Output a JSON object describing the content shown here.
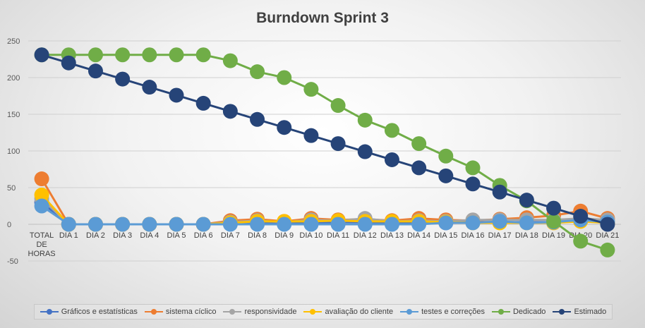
{
  "chart_data": {
    "type": "line",
    "title": "Burndown Sprint 3",
    "xlabel": "",
    "ylabel": "",
    "ylim": [
      -50,
      250
    ],
    "yticks": [
      -50,
      0,
      50,
      100,
      150,
      200,
      250
    ],
    "grid": true,
    "legend_position": "bottom",
    "categories": [
      "TOTAL DE HORAS",
      "DIA 1",
      "DIA 2",
      "DIA 3",
      "DIA 4",
      "DIA 5",
      "DIA 6",
      "DIA 7",
      "DIA 8",
      "DIA 9",
      "DIA 10",
      "DIA 11",
      "DIA 12",
      "DIA 13",
      "DIA 14",
      "DIA 15",
      "DIA 16",
      "DIA 17",
      "DIA 18",
      "DIA 19",
      "DIA 20",
      "DIA 21"
    ],
    "series": [
      {
        "name": "Gráficos e estatísticas",
        "color": "#4472C4",
        "values": [
          30,
          0,
          0,
          0,
          0,
          0,
          0,
          2,
          3,
          1,
          2,
          3,
          3,
          2,
          3,
          2,
          3,
          3,
          3,
          3,
          5,
          3
        ]
      },
      {
        "name": "sistema cíclico",
        "color": "#ED7D31",
        "values": [
          62,
          0,
          0,
          0,
          0,
          0,
          0,
          5,
          7,
          4,
          8,
          6,
          7,
          5,
          8,
          6,
          5,
          7,
          9,
          12,
          18,
          8
        ]
      },
      {
        "name": "responsividade",
        "color": "#A5A5A5",
        "values": [
          35,
          0,
          0,
          0,
          0,
          0,
          0,
          3,
          5,
          3,
          6,
          5,
          8,
          4,
          5,
          4,
          6,
          6,
          6,
          6,
          8,
          6
        ]
      },
      {
        "name": "avaliação do cliente",
        "color": "#FFC000",
        "values": [
          40,
          0,
          0,
          0,
          0,
          0,
          0,
          2,
          4,
          4,
          4,
          5,
          4,
          4,
          4,
          3,
          2,
          2,
          2,
          2,
          4,
          2
        ]
      },
      {
        "name": "testes e correções",
        "color": "#5B9BD5",
        "values": [
          25,
          0,
          0,
          0,
          0,
          0,
          0,
          0,
          0,
          0,
          0,
          0,
          0,
          0,
          0,
          2,
          2,
          4,
          2,
          3,
          6,
          3
        ]
      },
      {
        "name": "Dedicado",
        "color": "#70AD47",
        "values": [
          231,
          231,
          231,
          231,
          231,
          231,
          231,
          223,
          208,
          200,
          184,
          162,
          142,
          128,
          110,
          93,
          77,
          53,
          32,
          4,
          -23,
          -35
        ]
      },
      {
        "name": "Estimado",
        "color": "#264478",
        "values": [
          231,
          220,
          209,
          198,
          187,
          176,
          165,
          154,
          143,
          132,
          121,
          110,
          99,
          88,
          77,
          66,
          55,
          44,
          33,
          22,
          11,
          0
        ]
      }
    ]
  }
}
